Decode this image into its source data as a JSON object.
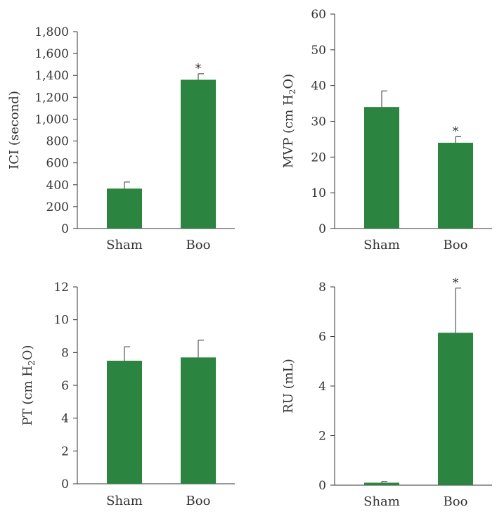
{
  "bar_color": "#2b8540",
  "chart_data": [
    {
      "type": "bar",
      "title": "",
      "ylabel": "ICI (second)",
      "ylabel_sub": "",
      "ylabel_end": "",
      "categories": [
        "Sham",
        "Boo"
      ],
      "values": [
        365,
        1360
      ],
      "errors": [
        60,
        55
      ],
      "significance": [
        "",
        "*"
      ],
      "ylim": [
        0,
        1800
      ],
      "yticks": [
        0,
        200,
        400,
        600,
        800,
        1000,
        1200,
        1400,
        1600,
        1800
      ],
      "ytick_labels": [
        "0",
        "200",
        "400",
        "600",
        "800",
        "1,000",
        "1,200",
        "1,400",
        "1,600",
        "1,800"
      ]
    },
    {
      "type": "bar",
      "title": "",
      "ylabel": "MVP (cm H",
      "ylabel_sub": "2",
      "ylabel_end": "O)",
      "categories": [
        "Sham",
        "Boo"
      ],
      "values": [
        34,
        24
      ],
      "errors": [
        4.5,
        1.7
      ],
      "significance": [
        "",
        "*"
      ],
      "ylim": [
        0,
        60
      ],
      "yticks": [
        0,
        10,
        20,
        30,
        40,
        50,
        60
      ],
      "ytick_labels": [
        "0",
        "10",
        "20",
        "30",
        "40",
        "50",
        "60"
      ]
    },
    {
      "type": "bar",
      "title": "",
      "ylabel": "PT (cm H",
      "ylabel_sub": "2",
      "ylabel_end": "O)",
      "categories": [
        "Sham",
        "Boo"
      ],
      "values": [
        7.5,
        7.7
      ],
      "errors": [
        0.85,
        1.05
      ],
      "significance": [
        "",
        ""
      ],
      "ylim": [
        0,
        12
      ],
      "yticks": [
        0,
        2,
        4,
        6,
        8,
        10,
        12
      ],
      "ytick_labels": [
        "0",
        "2",
        "4",
        "6",
        "8",
        "10",
        "12"
      ]
    },
    {
      "type": "bar",
      "title": "",
      "ylabel": "RU (mL)",
      "ylabel_sub": "",
      "ylabel_end": "",
      "categories": [
        "Sham",
        "Boo"
      ],
      "values": [
        0.1,
        6.15
      ],
      "errors": [
        0.05,
        1.8
      ],
      "significance": [
        "",
        "*"
      ],
      "ylim": [
        0,
        8
      ],
      "yticks": [
        0,
        2,
        4,
        6,
        8
      ],
      "ytick_labels": [
        "0",
        "2",
        "4",
        "6",
        "8"
      ]
    }
  ]
}
